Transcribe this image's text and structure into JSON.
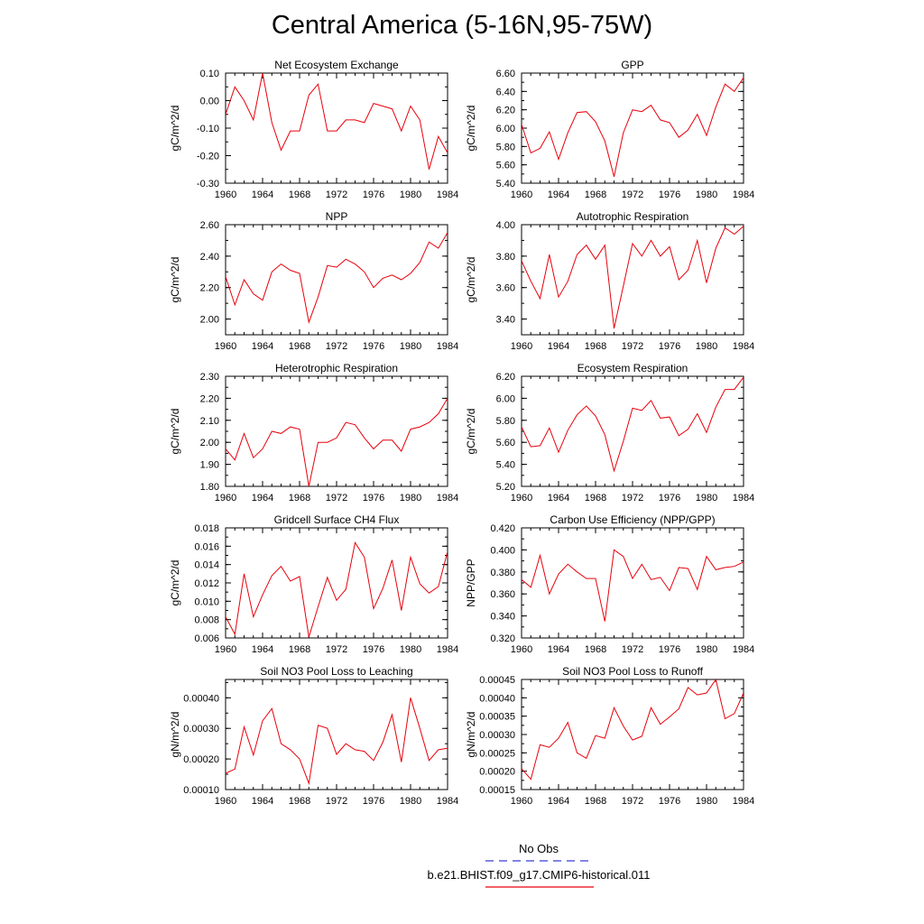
{
  "title": "Central America (5-16N,95-75W)",
  "colors": {
    "model_line": "#e8000b",
    "obs_line": "#3b3bd4",
    "axis": "#000000"
  },
  "legend": {
    "entries": [
      {
        "label": "No Obs",
        "color": "#3b3bd4",
        "style": "dashed"
      },
      {
        "label": "b.e21.BHIST.f09_g17.CMIP6-historical.011",
        "color": "#e8000b",
        "style": "solid"
      }
    ]
  },
  "chart_data": [
    {
      "type": "line",
      "title": "Net Ecosystem Exchange",
      "ylabel": "gC/m^2/d",
      "xlim": [
        1960,
        1984
      ],
      "xticks": [
        "1960",
        "1964",
        "1968",
        "1972",
        "1976",
        "1980",
        "1984"
      ],
      "ylim": [
        -0.3,
        0.1
      ],
      "yticks": [
        "0.10",
        "0.00",
        "-0.10",
        "-0.20",
        "-0.30"
      ],
      "x": [
        1960,
        1961,
        1962,
        1963,
        1964,
        1965,
        1966,
        1967,
        1968,
        1969,
        1970,
        1971,
        1972,
        1973,
        1974,
        1975,
        1976,
        1977,
        1978,
        1979,
        1980,
        1981,
        1982,
        1983,
        1984
      ],
      "series": [
        {
          "values": [
            -0.05,
            0.05,
            0.0,
            -0.07,
            0.1,
            -0.08,
            -0.18,
            -0.11,
            -0.11,
            0.02,
            0.06,
            -0.11,
            -0.11,
            -0.07,
            -0.07,
            -0.08,
            -0.01,
            -0.02,
            -0.03,
            -0.11,
            -0.02,
            -0.07,
            -0.25,
            -0.13,
            -0.19
          ]
        }
      ]
    },
    {
      "type": "line",
      "title": "GPP",
      "ylabel": "gC/m^2/d",
      "xlim": [
        1960,
        1984
      ],
      "xticks": [
        "1960",
        "1964",
        "1968",
        "1972",
        "1976",
        "1980",
        "1984"
      ],
      "ylim": [
        5.4,
        6.6
      ],
      "yticks": [
        "6.60",
        "6.40",
        "6.20",
        "6.00",
        "5.80",
        "5.60",
        "5.40"
      ],
      "x": [
        1960,
        1961,
        1962,
        1963,
        1964,
        1965,
        1966,
        1967,
        1968,
        1969,
        1970,
        1971,
        1972,
        1973,
        1974,
        1975,
        1976,
        1977,
        1978,
        1979,
        1980,
        1981,
        1982,
        1983,
        1984
      ],
      "series": [
        {
          "values": [
            6.04,
            5.73,
            5.78,
            5.96,
            5.66,
            5.95,
            6.17,
            6.18,
            6.07,
            5.86,
            5.47,
            5.95,
            6.2,
            6.18,
            6.25,
            6.09,
            6.06,
            5.9,
            5.98,
            6.15,
            5.92,
            6.23,
            6.48,
            6.4,
            6.55
          ]
        }
      ]
    },
    {
      "type": "line",
      "title": "NPP",
      "ylabel": "gC/m^2/d",
      "xlim": [
        1960,
        1984
      ],
      "xticks": [
        "1960",
        "1964",
        "1968",
        "1972",
        "1976",
        "1980",
        "1984"
      ],
      "ylim": [
        1.9,
        2.6
      ],
      "yticks": [
        "2.60",
        "2.40",
        "2.20",
        "2.00"
      ],
      "x": [
        1960,
        1961,
        1962,
        1963,
        1964,
        1965,
        1966,
        1967,
        1968,
        1969,
        1970,
        1971,
        1972,
        1973,
        1974,
        1975,
        1976,
        1977,
        1978,
        1979,
        1980,
        1981,
        1982,
        1983,
        1984
      ],
      "series": [
        {
          "values": [
            2.27,
            2.09,
            2.25,
            2.16,
            2.12,
            2.3,
            2.35,
            2.31,
            2.29,
            1.98,
            2.14,
            2.34,
            2.33,
            2.38,
            2.35,
            2.3,
            2.2,
            2.26,
            2.28,
            2.25,
            2.29,
            2.36,
            2.49,
            2.45,
            2.55
          ]
        }
      ]
    },
    {
      "type": "line",
      "title": "Autotrophic Respiration",
      "ylabel": "gC/m^2/d",
      "xlim": [
        1960,
        1984
      ],
      "xticks": [
        "1960",
        "1964",
        "1968",
        "1972",
        "1976",
        "1980",
        "1984"
      ],
      "ylim": [
        3.3,
        4.0
      ],
      "yticks": [
        "4.00",
        "3.80",
        "3.60",
        "3.40"
      ],
      "x": [
        1960,
        1961,
        1962,
        1963,
        1964,
        1965,
        1966,
        1967,
        1968,
        1969,
        1970,
        1971,
        1972,
        1973,
        1974,
        1975,
        1976,
        1977,
        1978,
        1979,
        1980,
        1981,
        1982,
        1983,
        1984
      ],
      "series": [
        {
          "values": [
            3.77,
            3.64,
            3.53,
            3.81,
            3.54,
            3.64,
            3.81,
            3.87,
            3.78,
            3.87,
            3.34,
            3.61,
            3.88,
            3.8,
            3.9,
            3.8,
            3.86,
            3.65,
            3.71,
            3.9,
            3.63,
            3.85,
            3.98,
            3.94,
            3.99
          ]
        }
      ]
    },
    {
      "type": "line",
      "title": "Heterotrophic Respiration",
      "ylabel": "gC/m^2/d",
      "xlim": [
        1960,
        1984
      ],
      "xticks": [
        "1960",
        "1964",
        "1968",
        "1972",
        "1976",
        "1980",
        "1984"
      ],
      "ylim": [
        1.8,
        2.3
      ],
      "yticks": [
        "2.30",
        "2.20",
        "2.10",
        "2.00",
        "1.90",
        "1.80"
      ],
      "x": [
        1960,
        1961,
        1962,
        1963,
        1964,
        1965,
        1966,
        1967,
        1968,
        1969,
        1970,
        1971,
        1972,
        1973,
        1974,
        1975,
        1976,
        1977,
        1978,
        1979,
        1980,
        1981,
        1982,
        1983,
        1984
      ],
      "series": [
        {
          "values": [
            1.97,
            1.92,
            2.04,
            1.93,
            1.97,
            2.05,
            2.04,
            2.07,
            2.06,
            1.8,
            2.0,
            2.0,
            2.02,
            2.09,
            2.08,
            2.02,
            1.97,
            2.01,
            2.01,
            1.96,
            2.06,
            2.07,
            2.09,
            2.13,
            2.2
          ]
        }
      ]
    },
    {
      "type": "line",
      "title": "Ecosystem Respiration",
      "ylabel": "gC/m^2/d",
      "xlim": [
        1960,
        1984
      ],
      "xticks": [
        "1960",
        "1964",
        "1968",
        "1972",
        "1976",
        "1980",
        "1984"
      ],
      "ylim": [
        5.2,
        6.2
      ],
      "yticks": [
        "6.20",
        "6.00",
        "5.80",
        "5.60",
        "5.40",
        "5.20"
      ],
      "x": [
        1960,
        1961,
        1962,
        1963,
        1964,
        1965,
        1966,
        1967,
        1968,
        1969,
        1970,
        1971,
        1972,
        1973,
        1974,
        1975,
        1976,
        1977,
        1978,
        1979,
        1980,
        1981,
        1982,
        1983,
        1984
      ],
      "series": [
        {
          "values": [
            5.74,
            5.56,
            5.57,
            5.73,
            5.51,
            5.71,
            5.85,
            5.93,
            5.84,
            5.67,
            5.34,
            5.61,
            5.91,
            5.89,
            5.98,
            5.82,
            5.83,
            5.66,
            5.72,
            5.86,
            5.69,
            5.92,
            6.08,
            6.08,
            6.19
          ]
        }
      ]
    },
    {
      "type": "line",
      "title": "Gridcell Surface CH4 Flux",
      "ylabel": "gC/m^2/d",
      "xlim": [
        1960,
        1984
      ],
      "xticks": [
        "1960",
        "1964",
        "1968",
        "1972",
        "1976",
        "1980",
        "1984"
      ],
      "ylim": [
        0.006,
        0.018
      ],
      "yticks": [
        "0.018",
        "0.016",
        "0.014",
        "0.012",
        "0.010",
        "0.008",
        "0.006"
      ],
      "x": [
        1960,
        1961,
        1962,
        1963,
        1964,
        1965,
        1966,
        1967,
        1968,
        1969,
        1970,
        1971,
        1972,
        1973,
        1974,
        1975,
        1976,
        1977,
        1978,
        1979,
        1980,
        1981,
        1982,
        1983,
        1984
      ],
      "series": [
        {
          "values": [
            0.0083,
            0.0064,
            0.013,
            0.0083,
            0.0107,
            0.0128,
            0.0138,
            0.0122,
            0.0127,
            0.0061,
            0.0094,
            0.0126,
            0.0101,
            0.0113,
            0.0164,
            0.0148,
            0.0092,
            0.0114,
            0.0145,
            0.009,
            0.0148,
            0.0119,
            0.0109,
            0.0116,
            0.0154
          ]
        }
      ]
    },
    {
      "type": "line",
      "title": "Carbon Use Efficiency (NPP/GPP)",
      "ylabel": "NPP/GPP",
      "xlim": [
        1960,
        1984
      ],
      "xticks": [
        "1960",
        "1964",
        "1968",
        "1972",
        "1976",
        "1980",
        "1984"
      ],
      "ylim": [
        0.32,
        0.42
      ],
      "yticks": [
        "0.420",
        "0.400",
        "0.380",
        "0.360",
        "0.340",
        "0.320"
      ],
      "x": [
        1960,
        1961,
        1962,
        1963,
        1964,
        1965,
        1966,
        1967,
        1968,
        1969,
        1970,
        1971,
        1972,
        1973,
        1974,
        1975,
        1976,
        1977,
        1978,
        1979,
        1980,
        1981,
        1982,
        1983,
        1984
      ],
      "series": [
        {
          "values": [
            0.373,
            0.366,
            0.395,
            0.36,
            0.378,
            0.387,
            0.38,
            0.374,
            0.374,
            0.335,
            0.4,
            0.394,
            0.374,
            0.387,
            0.373,
            0.375,
            0.363,
            0.384,
            0.383,
            0.364,
            0.394,
            0.382,
            0.384,
            0.385,
            0.389
          ]
        }
      ]
    },
    {
      "type": "line",
      "title": "Soil NO3 Pool Loss to Leaching",
      "ylabel": "gN/m^2/d",
      "xlim": [
        1960,
        1984
      ],
      "xticks": [
        "1960",
        "1964",
        "1968",
        "1972",
        "1976",
        "1980",
        "1984"
      ],
      "ylim": [
        0.0001,
        0.00046
      ],
      "yticks": [
        "0.00040",
        "0.00030",
        "0.00020",
        "0.00010"
      ],
      "x": [
        1960,
        1961,
        1962,
        1963,
        1964,
        1965,
        1966,
        1967,
        1968,
        1969,
        1970,
        1971,
        1972,
        1973,
        1974,
        1975,
        1976,
        1977,
        1978,
        1979,
        1980,
        1981,
        1982,
        1983,
        1984
      ],
      "series": [
        {
          "values": [
            0.000153,
            0.000167,
            0.000305,
            0.000213,
            0.000325,
            0.000365,
            0.00025,
            0.00023,
            0.0002,
            0.00012,
            0.00031,
            0.0003,
            0.000215,
            0.00025,
            0.00023,
            0.000225,
            0.000195,
            0.000255,
            0.000345,
            0.00019,
            0.0004,
            0.0003,
            0.000195,
            0.00023,
            0.000235
          ]
        }
      ]
    },
    {
      "type": "line",
      "title": "Soil NO3 Pool Loss to Runoff",
      "ylabel": "gN/m^2/d",
      "xlim": [
        1960,
        1984
      ],
      "xticks": [
        "1960",
        "1964",
        "1968",
        "1972",
        "1976",
        "1980",
        "1984"
      ],
      "ylim": [
        0.00015,
        0.00045
      ],
      "yticks": [
        "0.00045",
        "0.00040",
        "0.00035",
        "0.00030",
        "0.00025",
        "0.00020",
        "0.00015"
      ],
      "x": [
        1960,
        1961,
        1962,
        1963,
        1964,
        1965,
        1966,
        1967,
        1968,
        1969,
        1970,
        1971,
        1972,
        1973,
        1974,
        1975,
        1976,
        1977,
        1978,
        1979,
        1980,
        1981,
        1982,
        1983,
        1984
      ],
      "series": [
        {
          "values": [
            0.000207,
            0.000178,
            0.000272,
            0.000265,
            0.00029,
            0.000333,
            0.00025,
            0.000235,
            0.000297,
            0.00029,
            0.000373,
            0.000323,
            0.000285,
            0.000295,
            0.000373,
            0.000328,
            0.000348,
            0.00037,
            0.000428,
            0.000408,
            0.000413,
            0.00045,
            0.000343,
            0.000357,
            0.000413
          ]
        }
      ]
    }
  ]
}
